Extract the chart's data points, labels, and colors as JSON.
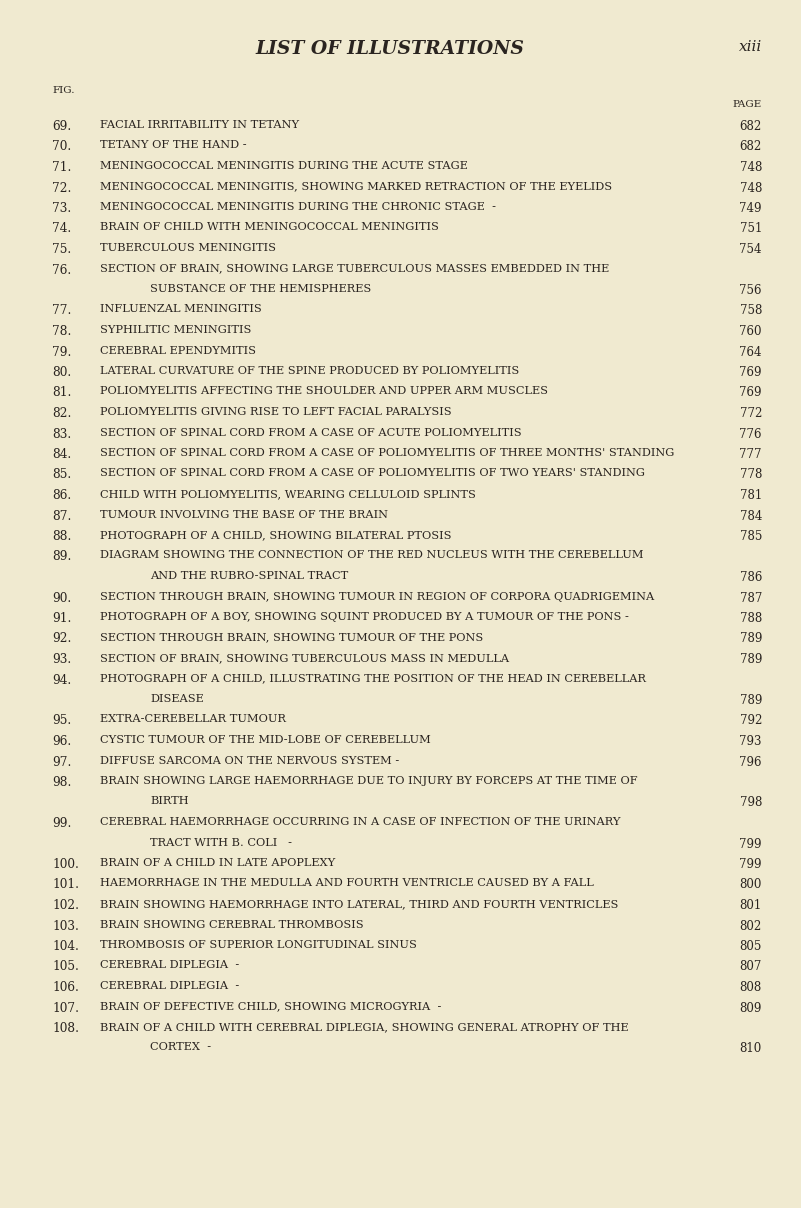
{
  "bg_color": "#f0ead0",
  "title": "LIST OF ILLUSTRATIONS",
  "page_label": "xiii",
  "fig_label": "FIG.",
  "page_col_label": "PAGE",
  "entries": [
    {
      "num": "69.",
      "text": "FACIAL IRRITABILITY IN TETANY",
      "dots": true,
      "page": "682",
      "cont": null
    },
    {
      "num": "70.",
      "text": "TETANY OF THE HAND -",
      "dots": false,
      "page": "682",
      "cont": null
    },
    {
      "num": "71.",
      "text": "MENINGOCOCCAL MENINGITIS DURING THE ACUTE STAGE",
      "dots": false,
      "page": "748",
      "cont": null
    },
    {
      "num": "72.",
      "text": "MENINGOCOCCAL MENINGITIS, SHOWING MARKED RETRACTION OF THE EYELIDS",
      "dots": false,
      "page": "748",
      "cont": null
    },
    {
      "num": "73.",
      "text": "MENINGOCOCCAL MENINGITIS DURING THE CHRONIC STAGE  -",
      "dots": true,
      "page": "749",
      "cont": null
    },
    {
      "num": "74.",
      "text": "BRAIN OF CHILD WITH MENINGOCOCCAL MENINGITIS",
      "dots": false,
      "page": "751",
      "cont": null
    },
    {
      "num": "75.",
      "text": "TUBERCULOUS MENINGITIS",
      "dots": false,
      "page": "754",
      "cont": null
    },
    {
      "num": "76.",
      "text": "SECTION OF BRAIN, SHOWING LARGE TUBERCULOUS MASSES EMBEDDED IN THE",
      "dots": false,
      "page": "756",
      "cont": "SUBSTANCE OF THE HEMISPHERES"
    },
    {
      "num": "77.",
      "text": "INFLUENZAL MENINGITIS",
      "dots": true,
      "page": "758",
      "cont": null
    },
    {
      "num": "78.",
      "text": "SYPHILITIC MENINGITIS",
      "dots": true,
      "page": "760",
      "cont": null
    },
    {
      "num": "79.",
      "text": "CEREBRAL EPENDYMITIS",
      "dots": false,
      "page": "764",
      "cont": null
    },
    {
      "num": "80.",
      "text": "LATERAL CURVATURE OF THE SPINE PRODUCED BY POLIOMYELITIS",
      "dots": false,
      "page": "769",
      "cont": null
    },
    {
      "num": "81.",
      "text": "POLIOMYELITIS AFFECTING THE SHOULDER AND UPPER ARM MUSCLES",
      "dots": false,
      "page": "769",
      "cont": null
    },
    {
      "num": "82.",
      "text": "POLIOMYELITIS GIVING RISE TO LEFT FACIAL PARALYSIS",
      "dots": false,
      "page": "772",
      "cont": null
    },
    {
      "num": "83.",
      "text": "SECTION OF SPINAL CORD FROM A CASE OF ACUTE POLIOMYELITIS",
      "dots": false,
      "page": "776",
      "cont": null
    },
    {
      "num": "84.",
      "text": "SECTION OF SPINAL CORD FROM A CASE OF POLIOMYELITIS OF THREE MONTHS' STANDING",
      "dots": false,
      "page": "777",
      "cont": null
    },
    {
      "num": "85.",
      "text": "SECTION OF SPINAL CORD FROM A CASE OF POLIOMYELITIS OF TWO YEARS' STANDING",
      "dots": false,
      "page": "778",
      "cont": null
    },
    {
      "num": "86.",
      "text": "CHILD WITH POLIOMYELITIS, WEARING CELLULOID SPLINTS",
      "dots": false,
      "page": "781",
      "cont": null
    },
    {
      "num": "87.",
      "text": "TUMOUR INVOLVING THE BASE OF THE BRAIN",
      "dots": false,
      "page": "784",
      "cont": null
    },
    {
      "num": "88.",
      "text": "PHOTOGRAPH OF A CHILD, SHOWING BILATERAL PTOSIS",
      "dots": false,
      "page": "785",
      "cont": null
    },
    {
      "num": "89.",
      "text": "DIAGRAM SHOWING THE CONNECTION OF THE RED NUCLEUS WITH THE CEREBELLUM",
      "dots": false,
      "page": "786",
      "cont": "AND THE RUBRO-SPINAL TRACT"
    },
    {
      "num": "90.",
      "text": "SECTION THROUGH BRAIN, SHOWING TUMOUR IN REGION OF CORPORA QUADRIGEMINA",
      "dots": false,
      "page": "787",
      "cont": null
    },
    {
      "num": "91.",
      "text": "PHOTOGRAPH OF A BOY, SHOWING SQUINT PRODUCED BY A TUMOUR OF THE PONS -",
      "dots": false,
      "page": "788",
      "cont": null
    },
    {
      "num": "92.",
      "text": "SECTION THROUGH BRAIN, SHOWING TUMOUR OF THE PONS",
      "dots": false,
      "page": "789",
      "cont": null
    },
    {
      "num": "93.",
      "text": "SECTION OF BRAIN, SHOWING TUBERCULOUS MASS IN MEDULLA",
      "dots": false,
      "page": "789",
      "cont": null
    },
    {
      "num": "94.",
      "text": "PHOTOGRAPH OF A CHILD, ILLUSTRATING THE POSITION OF THE HEAD IN CEREBELLAR",
      "dots": true,
      "page": "789",
      "cont": "DISEASE"
    },
    {
      "num": "95.",
      "text": "EXTRA-CEREBELLAR TUMOUR",
      "dots": false,
      "page": "792",
      "cont": null
    },
    {
      "num": "96.",
      "text": "CYSTIC TUMOUR OF THE MID-LOBE OF CEREBELLUM",
      "dots": false,
      "page": "793",
      "cont": null
    },
    {
      "num": "97.",
      "text": "DIFFUSE SARCOMA ON THE NERVOUS SYSTEM -",
      "dots": false,
      "page": "796",
      "cont": null
    },
    {
      "num": "98.",
      "text": "BRAIN SHOWING LARGE HAEMORRHAGE DUE TO INJURY BY FORCEPS AT THE TIME OF",
      "dots": true,
      "page": "798",
      "cont": "BIRTH"
    },
    {
      "num": "99.",
      "text": "CEREBRAL HAEMORRHAGE OCCURRING IN A CASE OF INFECTION OF THE URINARY",
      "dots": true,
      "page": "799",
      "cont": "TRACT WITH B. COLI   -"
    },
    {
      "num": "100.",
      "text": "BRAIN OF A CHILD IN LATE APOPLEXY",
      "dots": false,
      "page": "799",
      "cont": null
    },
    {
      "num": "101.",
      "text": "HAEMORRHAGE IN THE MEDULLA AND FOURTH VENTRICLE CAUSED BY A FALL",
      "dots": false,
      "page": "800",
      "cont": null
    },
    {
      "num": "102.",
      "text": "BRAIN SHOWING HAEMORRHAGE INTO LATERAL, THIRD AND FOURTH VENTRICLES",
      "dots": false,
      "page": "801",
      "cont": null
    },
    {
      "num": "103.",
      "text": "BRAIN SHOWING CEREBRAL THROMBOSIS",
      "dots": false,
      "page": "802",
      "cont": null
    },
    {
      "num": "104.",
      "text": "THROMBOSIS OF SUPERIOR LONGITUDINAL SINUS",
      "dots": false,
      "page": "805",
      "cont": null
    },
    {
      "num": "105.",
      "text": "CEREBRAL DIPLEGIA  -",
      "dots": false,
      "page": "807",
      "cont": null
    },
    {
      "num": "106.",
      "text": "CEREBRAL DIPLEGIA  -",
      "dots": false,
      "page": "808",
      "cont": null
    },
    {
      "num": "107.",
      "text": "BRAIN OF DEFECTIVE CHILD, SHOWING MICROGYRIA  -",
      "dots": false,
      "page": "809",
      "cont": null
    },
    {
      "num": "108.",
      "text": "BRAIN OF A CHILD WITH CEREBRAL DIPLEGIA, SHOWING GENERAL ATROPHY OF THE",
      "dots": true,
      "page": "810",
      "cont": "CORTEX  -"
    }
  ]
}
